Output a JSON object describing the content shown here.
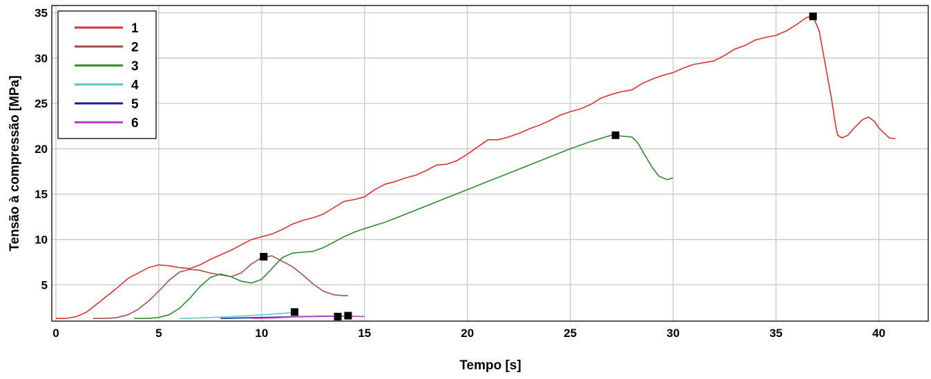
{
  "chart_data": {
    "type": "line",
    "title": "",
    "xlabel": "Tempo [s]",
    "ylabel": "Tensão à compressão [MPa]",
    "xlim": [
      -0.2,
      42.4
    ],
    "ylim": [
      1.0,
      35.8
    ],
    "xticks": [
      0,
      5,
      10,
      15,
      20,
      25,
      30,
      35,
      40
    ],
    "yticks": [
      5,
      10,
      15,
      20,
      25,
      30,
      35
    ],
    "grid": true,
    "legend_position": "top-left",
    "series": [
      {
        "name": "1",
        "color": "#d93030",
        "points": [
          [
            0,
            1.3
          ],
          [
            0.5,
            1.3
          ],
          [
            1,
            1.5
          ],
          [
            1.5,
            2.0
          ],
          [
            2,
            2.9
          ],
          [
            2.5,
            3.8
          ],
          [
            3,
            4.7
          ],
          [
            3.5,
            5.7
          ],
          [
            4,
            6.3
          ],
          [
            4.5,
            6.9
          ],
          [
            5,
            7.2
          ],
          [
            5.5,
            7.1
          ],
          [
            6,
            6.9
          ],
          [
            6.5,
            6.8
          ],
          [
            7,
            7.2
          ],
          [
            7.5,
            7.8
          ],
          [
            8,
            8.3
          ],
          [
            8.5,
            8.8
          ],
          [
            9,
            9.4
          ],
          [
            9.5,
            10.0
          ],
          [
            10,
            10.3
          ],
          [
            10.5,
            10.6
          ],
          [
            11,
            11.1
          ],
          [
            11.5,
            11.7
          ],
          [
            12,
            12.1
          ],
          [
            12.5,
            12.4
          ],
          [
            13,
            12.8
          ],
          [
            13.5,
            13.5
          ],
          [
            14,
            14.2
          ],
          [
            14.5,
            14.4
          ],
          [
            15,
            14.7
          ],
          [
            15.5,
            15.5
          ],
          [
            16,
            16.1
          ],
          [
            16.5,
            16.4
          ],
          [
            17,
            16.8
          ],
          [
            17.5,
            17.1
          ],
          [
            18,
            17.6
          ],
          [
            18.5,
            18.2
          ],
          [
            19,
            18.3
          ],
          [
            19.5,
            18.7
          ],
          [
            20,
            19.4
          ],
          [
            20.5,
            20.2
          ],
          [
            21,
            21.0
          ],
          [
            21.5,
            21.0
          ],
          [
            22,
            21.3
          ],
          [
            22.5,
            21.7
          ],
          [
            23,
            22.2
          ],
          [
            23.5,
            22.6
          ],
          [
            24,
            23.1
          ],
          [
            24.5,
            23.7
          ],
          [
            25,
            24.1
          ],
          [
            25.5,
            24.4
          ],
          [
            26,
            24.9
          ],
          [
            26.5,
            25.6
          ],
          [
            27,
            26.0
          ],
          [
            27.5,
            26.3
          ],
          [
            28,
            26.5
          ],
          [
            28.5,
            27.2
          ],
          [
            29,
            27.7
          ],
          [
            29.5,
            28.1
          ],
          [
            30,
            28.4
          ],
          [
            30.5,
            28.9
          ],
          [
            31,
            29.3
          ],
          [
            31.5,
            29.5
          ],
          [
            32,
            29.7
          ],
          [
            32.5,
            30.3
          ],
          [
            33,
            31.0
          ],
          [
            33.5,
            31.4
          ],
          [
            34,
            32.0
          ],
          [
            34.5,
            32.3
          ],
          [
            35,
            32.5
          ],
          [
            35.5,
            33.0
          ],
          [
            36,
            33.7
          ],
          [
            36.5,
            34.5
          ],
          [
            36.8,
            34.6
          ],
          [
            37.1,
            33.0
          ],
          [
            37.3,
            30.5
          ],
          [
            37.5,
            28.0
          ],
          [
            37.7,
            25.5
          ],
          [
            37.8,
            24.0
          ],
          [
            37.9,
            22.5
          ],
          [
            38,
            21.5
          ],
          [
            38.2,
            21.2
          ],
          [
            38.5,
            21.5
          ],
          [
            38.8,
            22.3
          ],
          [
            39.2,
            23.2
          ],
          [
            39.5,
            23.5
          ],
          [
            39.8,
            23.0
          ],
          [
            40,
            22.3
          ],
          [
            40.5,
            21.2
          ],
          [
            40.8,
            21.1
          ]
        ],
        "failure": [
          36.8,
          34.6
        ]
      },
      {
        "name": "2",
        "color": "#a0524c",
        "points": [
          [
            1.8,
            1.3
          ],
          [
            2.5,
            1.3
          ],
          [
            3,
            1.4
          ],
          [
            3.5,
            1.7
          ],
          [
            4,
            2.3
          ],
          [
            4.5,
            3.2
          ],
          [
            5,
            4.3
          ],
          [
            5.5,
            5.5
          ],
          [
            6,
            6.4
          ],
          [
            6.5,
            6.7
          ],
          [
            7,
            6.6
          ],
          [
            7.5,
            6.3
          ],
          [
            8,
            6.1
          ],
          [
            8.5,
            5.9
          ],
          [
            9,
            6.3
          ],
          [
            9.5,
            7.3
          ],
          [
            10,
            8.0
          ],
          [
            10.5,
            8.2
          ],
          [
            11,
            7.6
          ],
          [
            11.5,
            7.0
          ],
          [
            12,
            6.1
          ],
          [
            12.5,
            5.1
          ],
          [
            13,
            4.3
          ],
          [
            13.5,
            3.9
          ],
          [
            14,
            3.8
          ],
          [
            14.2,
            3.8
          ]
        ],
        "failure": [
          10.1,
          8.1
        ]
      },
      {
        "name": "3",
        "color": "#2e8b2e",
        "points": [
          [
            3.8,
            1.3
          ],
          [
            4.5,
            1.3
          ],
          [
            5,
            1.4
          ],
          [
            5.5,
            1.7
          ],
          [
            6,
            2.4
          ],
          [
            6.5,
            3.5
          ],
          [
            7,
            4.8
          ],
          [
            7.5,
            5.8
          ],
          [
            8,
            6.2
          ],
          [
            8.5,
            5.9
          ],
          [
            9,
            5.4
          ],
          [
            9.5,
            5.2
          ],
          [
            10,
            5.6
          ],
          [
            10.5,
            6.8
          ],
          [
            11,
            8.0
          ],
          [
            11.5,
            8.5
          ],
          [
            12,
            8.6
          ],
          [
            12.5,
            8.7
          ],
          [
            13,
            9.1
          ],
          [
            13.5,
            9.7
          ],
          [
            14,
            10.3
          ],
          [
            14.5,
            10.8
          ],
          [
            15,
            11.2
          ],
          [
            16,
            11.9
          ],
          [
            17,
            12.8
          ],
          [
            18,
            13.7
          ],
          [
            19,
            14.6
          ],
          [
            20,
            15.5
          ],
          [
            21,
            16.4
          ],
          [
            22,
            17.3
          ],
          [
            23,
            18.2
          ],
          [
            24,
            19.1
          ],
          [
            25,
            20.0
          ],
          [
            26,
            20.8
          ],
          [
            27,
            21.5
          ],
          [
            27.5,
            21.4
          ],
          [
            28,
            21.3
          ],
          [
            28.3,
            20.6
          ],
          [
            28.6,
            19.4
          ],
          [
            29,
            17.9
          ],
          [
            29.3,
            17.0
          ],
          [
            29.7,
            16.6
          ],
          [
            30,
            16.8
          ]
        ],
        "failure": [
          27.2,
          21.5
        ]
      },
      {
        "name": "4",
        "color": "#5fcaca",
        "points": [
          [
            6,
            1.3
          ],
          [
            7,
            1.35
          ],
          [
            8,
            1.45
          ],
          [
            9,
            1.55
          ],
          [
            10,
            1.7
          ],
          [
            11,
            1.85
          ],
          [
            11.5,
            1.95
          ]
        ],
        "failure": [
          11.6,
          2.0
        ]
      },
      {
        "name": "5",
        "color": "#1a1a9a",
        "points": [
          [
            8,
            1.3
          ],
          [
            9,
            1.35
          ],
          [
            10,
            1.4
          ],
          [
            11,
            1.45
          ],
          [
            12,
            1.5
          ],
          [
            13,
            1.55
          ],
          [
            13.7,
            1.55
          ]
        ],
        "failure": [
          13.7,
          1.5
        ]
      },
      {
        "name": "6",
        "color": "#c43ac8",
        "points": [
          [
            9.5,
            1.3
          ],
          [
            10.5,
            1.35
          ],
          [
            11.5,
            1.45
          ],
          [
            12.5,
            1.5
          ],
          [
            13.5,
            1.55
          ],
          [
            14.3,
            1.55
          ],
          [
            15,
            1.5
          ]
        ],
        "failure": [
          14.2,
          1.6
        ]
      }
    ]
  }
}
